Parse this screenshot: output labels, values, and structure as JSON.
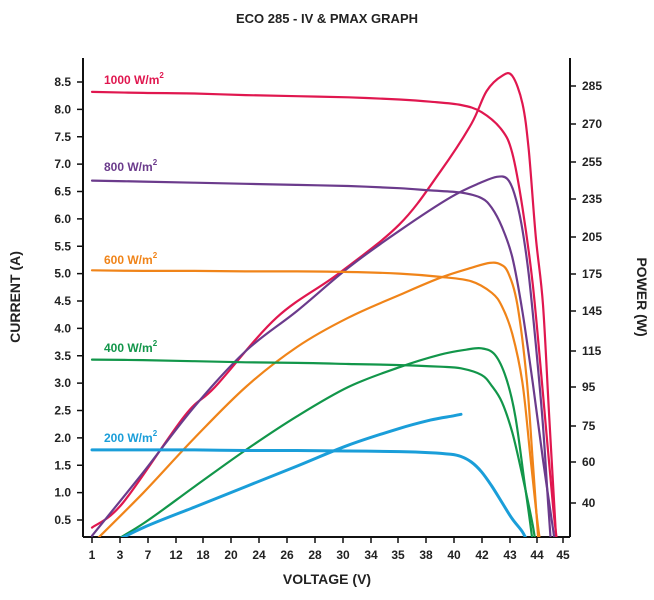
{
  "chart_data": {
    "type": "line",
    "title": "ECO 285 - IV & PMAX GRAPH",
    "xlabel": "VOLTAGE (V)",
    "ylabel": "CURRENT (A)",
    "y2label": "POWER (W)",
    "x_ticks": [
      "1",
      "3",
      "7",
      "12",
      "18",
      "20",
      "24",
      "26",
      "28",
      "30",
      "34",
      "35",
      "38",
      "40",
      "42",
      "43",
      "44",
      "45"
    ],
    "y_ticks": [
      "0.5",
      "1.0",
      "1.5",
      "2.0",
      "2.5",
      "3.0",
      "3.5",
      "4.0",
      "4.5",
      "5.0",
      "5.5",
      "6.0",
      "6.5",
      "7.0",
      "7.5",
      "8.0",
      "8.5"
    ],
    "y2_ticks": [
      "40",
      "60",
      "75",
      "95",
      "115",
      "145",
      "175",
      "205",
      "235",
      "255",
      "270",
      "285"
    ],
    "grid": false,
    "legend": "inline",
    "series": [
      {
        "name": "1000 W/m",
        "sup": "2",
        "color": "#e0174f",
        "iv": [
          [
            0,
            8.32
          ],
          [
            5,
            8.3
          ],
          [
            10,
            8.29
          ],
          [
            15,
            8.26
          ],
          [
            20,
            8.24
          ],
          [
            25,
            8.22
          ],
          [
            30,
            8.18
          ],
          [
            33,
            8.14
          ],
          [
            36,
            8.08
          ],
          [
            38,
            7.95
          ],
          [
            40,
            7.62
          ],
          [
            41,
            7.2
          ],
          [
            42,
            6.2
          ],
          [
            43,
            4.8
          ],
          [
            44,
            2.8
          ],
          [
            45,
            0.7
          ],
          [
            45.6,
            -0.2
          ]
        ],
        "power": [
          [
            0,
            28
          ],
          [
            3,
            40
          ],
          [
            9,
            80
          ],
          [
            12,
            95
          ],
          [
            18,
            140
          ],
          [
            24,
            175
          ],
          [
            30,
            215
          ],
          [
            34,
            250
          ],
          [
            37,
            270
          ],
          [
            38.5,
            283
          ],
          [
            40,
            289
          ],
          [
            41,
            289
          ],
          [
            42,
            278
          ],
          [
            42.6,
            260
          ],
          [
            43.3,
            205
          ],
          [
            44,
            150
          ],
          [
            44.6,
            80
          ],
          [
            45.2,
            30
          ],
          [
            45.6,
            -10
          ]
        ]
      },
      {
        "name": "800 W/m",
        "sup": "2",
        "color": "#6b3b8c",
        "iv": [
          [
            0,
            6.7
          ],
          [
            5,
            6.68
          ],
          [
            10,
            6.66
          ],
          [
            15,
            6.64
          ],
          [
            20,
            6.62
          ],
          [
            25,
            6.6
          ],
          [
            30,
            6.56
          ],
          [
            33,
            6.52
          ],
          [
            36,
            6.48
          ],
          [
            38,
            6.38
          ],
          [
            39,
            6.2
          ],
          [
            40,
            5.85
          ],
          [
            41,
            5.3
          ],
          [
            42,
            4.3
          ],
          [
            43,
            3.0
          ],
          [
            44,
            1.6
          ],
          [
            45,
            0.3
          ],
          [
            45.3,
            -0.2
          ]
        ],
        "power": [
          [
            0,
            24
          ],
          [
            5,
            55
          ],
          [
            10,
            85
          ],
          [
            15,
            115
          ],
          [
            20,
            145
          ],
          [
            25,
            180
          ],
          [
            30,
            210
          ],
          [
            35,
            236
          ],
          [
            38,
            244
          ],
          [
            39.5,
            247
          ],
          [
            40.5,
            246
          ],
          [
            41.2,
            238
          ],
          [
            41.9,
            215
          ],
          [
            42.6,
            175
          ],
          [
            43.3,
            120
          ],
          [
            44,
            75
          ],
          [
            44.5,
            40
          ],
          [
            45.2,
            -10
          ]
        ]
      },
      {
        "name": "600 W/m",
        "sup": "2",
        "color": "#f08419",
        "iv": [
          [
            0,
            5.06
          ],
          [
            5,
            5.05
          ],
          [
            10,
            5.05
          ],
          [
            15,
            5.04
          ],
          [
            20,
            5.04
          ],
          [
            25,
            5.03
          ],
          [
            30,
            5.0
          ],
          [
            34,
            4.94
          ],
          [
            37,
            4.86
          ],
          [
            39,
            4.65
          ],
          [
            40,
            4.4
          ],
          [
            41,
            3.9
          ],
          [
            42,
            3.0
          ],
          [
            42.8,
            1.6
          ],
          [
            43.5,
            0.4
          ],
          [
            44,
            -0.2
          ]
        ],
        "power": [
          [
            0,
            20
          ],
          [
            5,
            45
          ],
          [
            10,
            70
          ],
          [
            15,
            95
          ],
          [
            20,
            118
          ],
          [
            25,
            140
          ],
          [
            30,
            158
          ],
          [
            34,
            172
          ],
          [
            37,
            180
          ],
          [
            38.8,
            184
          ],
          [
            39.8,
            183
          ],
          [
            40.6,
            176
          ],
          [
            41.5,
            150
          ],
          [
            42.4,
            100
          ],
          [
            43,
            60
          ],
          [
            43.5,
            25
          ],
          [
            44,
            -10
          ]
        ]
      },
      {
        "name": "400 W/m",
        "sup": "2",
        "color": "#12964a",
        "iv": [
          [
            0,
            3.43
          ],
          [
            5,
            3.42
          ],
          [
            10,
            3.4
          ],
          [
            15,
            3.38
          ],
          [
            20,
            3.37
          ],
          [
            25,
            3.35
          ],
          [
            30,
            3.33
          ],
          [
            34,
            3.3
          ],
          [
            36,
            3.27
          ],
          [
            38,
            3.15
          ],
          [
            39,
            2.95
          ],
          [
            40,
            2.65
          ],
          [
            41,
            2.1
          ],
          [
            42,
            1.3
          ],
          [
            43,
            0.4
          ],
          [
            43.5,
            -0.2
          ]
        ],
        "power": [
          [
            0,
            15
          ],
          [
            5,
            30
          ],
          [
            10,
            48
          ],
          [
            15,
            65
          ],
          [
            20,
            80
          ],
          [
            25,
            95
          ],
          [
            30,
            106
          ],
          [
            34,
            113
          ],
          [
            36.5,
            116
          ],
          [
            38,
            117
          ],
          [
            39.3,
            113
          ],
          [
            40.4,
            100
          ],
          [
            41.3,
            80
          ],
          [
            42.2,
            50
          ],
          [
            43,
            20
          ],
          [
            43.5,
            -10
          ]
        ]
      },
      {
        "name": "200 W/m",
        "sup": "2",
        "color": "#1a9ed9",
        "iv": [
          [
            0,
            1.78
          ],
          [
            5,
            1.78
          ],
          [
            10,
            1.78
          ],
          [
            15,
            1.77
          ],
          [
            20,
            1.77
          ],
          [
            25,
            1.76
          ],
          [
            30,
            1.75
          ],
          [
            33,
            1.73
          ],
          [
            35,
            1.7
          ],
          [
            36,
            1.66
          ],
          [
            37,
            1.56
          ],
          [
            38,
            1.38
          ],
          [
            39,
            1.12
          ],
          [
            40,
            0.82
          ],
          [
            41,
            0.52
          ],
          [
            42,
            0.28
          ],
          [
            42.6,
            0.06
          ]
        ],
        "power": [
          [
            1,
            18
          ],
          [
            5,
            28
          ],
          [
            10,
            38
          ],
          [
            15,
            48
          ],
          [
            20,
            58
          ],
          [
            25,
            67
          ],
          [
            30,
            74
          ],
          [
            33,
            78
          ],
          [
            35,
            80
          ],
          [
            36,
            81
          ]
        ]
      }
    ]
  }
}
